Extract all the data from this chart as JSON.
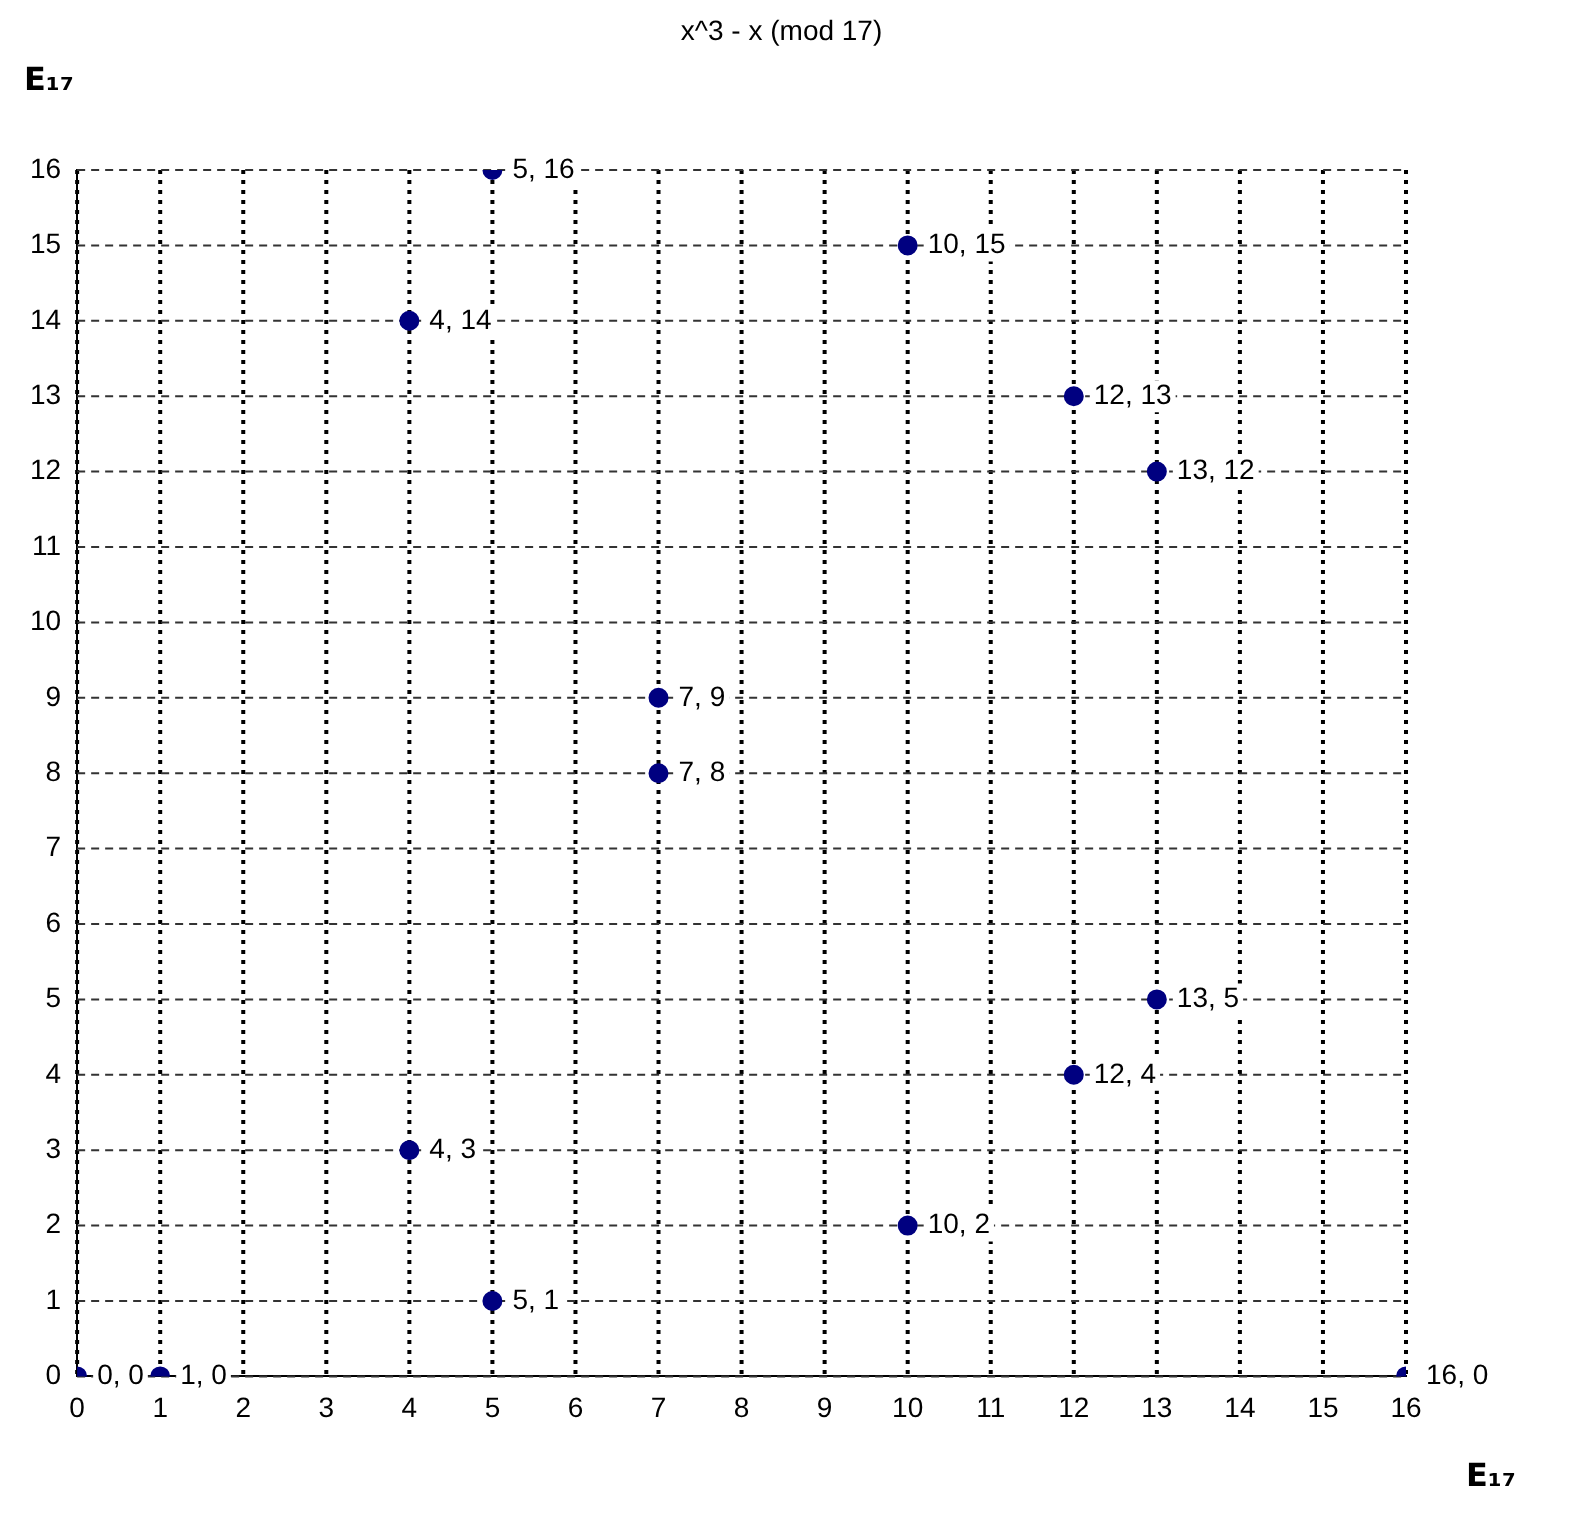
{
  "chart_data": {
    "type": "scatter",
    "title": "x^3 - x (mod 17)",
    "xlabel": "E₁₇",
    "ylabel": "E₁₇",
    "series": [
      {
        "color": "#000080",
        "x": [
          0,
          1,
          4,
          4,
          5,
          5,
          7,
          7,
          10,
          10,
          12,
          12,
          13,
          13,
          16
        ],
        "values": [
          0,
          0,
          3,
          14,
          1,
          16,
          8,
          9,
          2,
          15,
          4,
          13,
          5,
          12,
          0
        ],
        "value_labels": [
          "0, 0",
          "1, 0",
          "4, 3",
          "4, 14",
          "5, 1",
          "5, 16",
          "7, 8",
          "7, 9",
          "10, 2",
          "10, 15",
          "12, 4",
          "12, 13",
          "13, 5",
          "13, 12",
          "16, 0"
        ]
      }
    ],
    "xlim": [
      0,
      16
    ],
    "xticks": [
      0,
      1,
      2,
      3,
      4,
      5,
      6,
      7,
      8,
      9,
      10,
      11,
      12,
      13,
      14,
      15,
      16
    ],
    "ylim": [
      0,
      16
    ],
    "yticks": [
      0,
      1,
      2,
      3,
      4,
      5,
      6,
      7,
      8,
      9,
      10,
      11,
      12,
      13,
      14,
      15,
      16
    ],
    "grid": true,
    "legend": false,
    "marker": "circle"
  }
}
